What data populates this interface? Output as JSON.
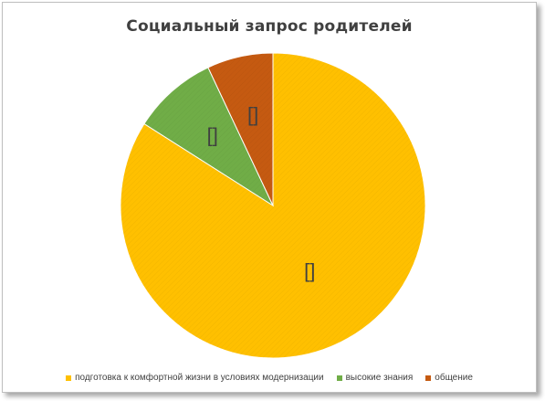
{
  "chart_data": {
    "type": "pie",
    "title": "Социальный запрос родителей",
    "categories": [
      "подготовка к комфортной жизни в условиях модернизации",
      "высокие знания",
      "общение"
    ],
    "values": [
      84,
      9,
      7
    ],
    "data_labels": [
      "[]",
      "[]",
      "[]"
    ],
    "colors": [
      "#FFC000",
      "#70AD47",
      "#C55A11"
    ],
    "start_angle_deg": 0,
    "direction": "clockwise",
    "legend_position": "bottom"
  }
}
